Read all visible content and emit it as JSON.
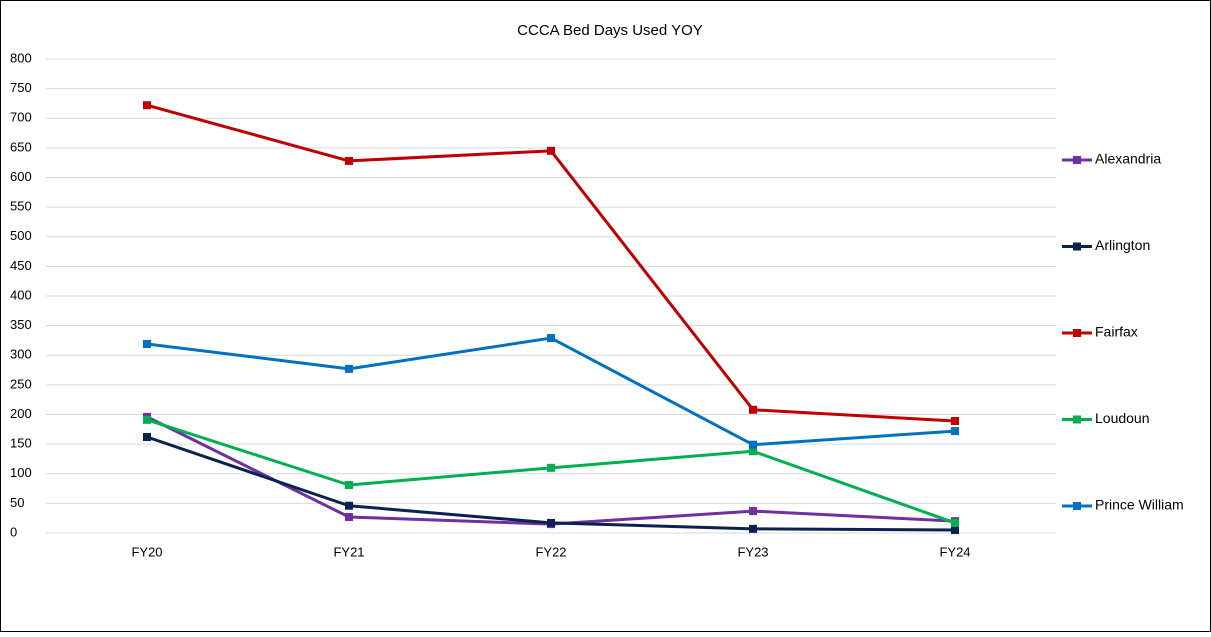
{
  "chart_data": {
    "type": "line",
    "title": "CCCA Bed Days Used YOY",
    "categories": [
      "FY20",
      "FY21",
      "FY22",
      "FY23",
      "FY24"
    ],
    "series": [
      {
        "name": "Alexandria",
        "color": "#7030a0",
        "values": [
          196,
          27,
          15,
          37,
          20
        ]
      },
      {
        "name": "Arlington",
        "color": "#0b2150",
        "values": [
          162,
          46,
          17,
          7,
          5
        ]
      },
      {
        "name": "Fairfax",
        "color": "#c00000",
        "values": [
          722,
          628,
          645,
          208,
          189
        ]
      },
      {
        "name": "Loudoun",
        "color": "#00b050",
        "values": [
          191,
          81,
          110,
          138,
          17
        ]
      },
      {
        "name": "Prince William",
        "color": "#0070c0",
        "values": [
          319,
          277,
          329,
          149,
          172
        ]
      }
    ],
    "ylim": [
      0,
      800
    ],
    "yticks": [
      0,
      50,
      100,
      150,
      200,
      250,
      300,
      350,
      400,
      450,
      500,
      550,
      600,
      650,
      700,
      750,
      800
    ],
    "grid": true,
    "legend": "right"
  }
}
